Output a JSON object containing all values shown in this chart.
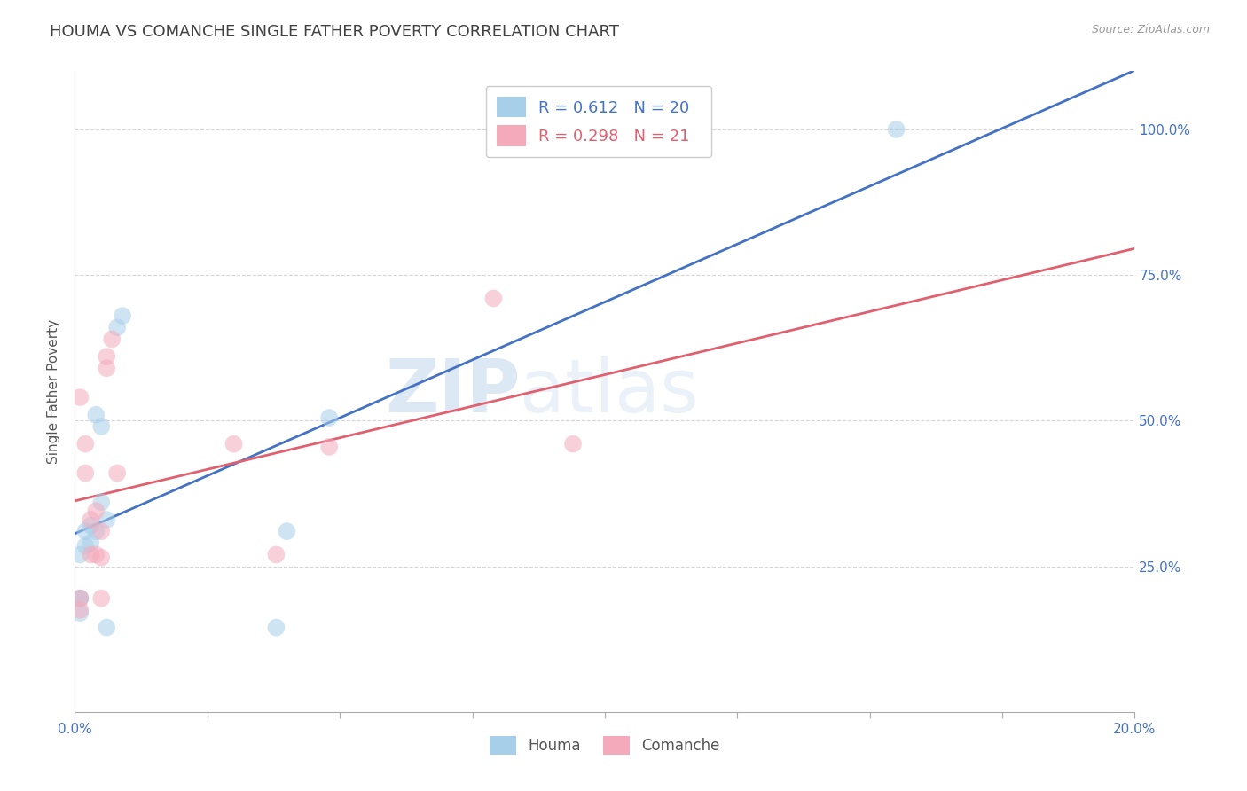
{
  "title": "HOUMA VS COMANCHE SINGLE FATHER POVERTY CORRELATION CHART",
  "source": "Source: ZipAtlas.com",
  "ylabel": "Single Father Poverty",
  "houma_R": 0.612,
  "houma_N": 20,
  "comanche_R": 0.298,
  "comanche_N": 21,
  "houma_color": "#A8CFEA",
  "comanche_color": "#F4AABB",
  "houma_line_color": "#4472C4",
  "comanche_line_color": "#E06070",
  "watermark_zip": "ZIP",
  "watermark_atlas": "atlas",
  "houma_x": [
    0.001,
    0.001,
    0.001,
    0.001,
    0.002,
    0.002,
    0.003,
    0.003,
    0.004,
    0.004,
    0.005,
    0.005,
    0.006,
    0.006,
    0.008,
    0.009,
    0.038,
    0.04,
    0.048,
    0.155
  ],
  "houma_y": [
    0.195,
    0.195,
    0.17,
    0.27,
    0.31,
    0.285,
    0.29,
    0.32,
    0.51,
    0.31,
    0.49,
    0.36,
    0.33,
    0.145,
    0.66,
    0.68,
    0.145,
    0.31,
    0.505,
    1.0
  ],
  "comanche_x": [
    0.001,
    0.001,
    0.001,
    0.002,
    0.002,
    0.003,
    0.003,
    0.004,
    0.004,
    0.005,
    0.005,
    0.005,
    0.006,
    0.006,
    0.007,
    0.008,
    0.03,
    0.038,
    0.048,
    0.079,
    0.094
  ],
  "comanche_y": [
    0.195,
    0.175,
    0.54,
    0.41,
    0.46,
    0.27,
    0.33,
    0.27,
    0.345,
    0.195,
    0.265,
    0.31,
    0.61,
    0.59,
    0.64,
    0.41,
    0.46,
    0.27,
    0.455,
    0.71,
    0.46
  ],
  "xlim": [
    0.0,
    0.2
  ],
  "ylim": [
    0.0,
    1.1
  ],
  "xtick_positions": [
    0.0,
    0.2
  ],
  "xtick_labels": [
    "0.0%",
    "20.0%"
  ],
  "ytick_positions": [
    0.25,
    0.5,
    0.75,
    1.0
  ],
  "ytick_labels": [
    "25.0%",
    "50.0%",
    "75.0%",
    "100.0%"
  ],
  "background_color": "#FFFFFF",
  "grid_color": "#CCCCCC",
  "title_color": "#404040",
  "axis_label_color": "#4472C4",
  "dot_size": 200,
  "dot_alpha": 0.55,
  "line_width": 2.0
}
